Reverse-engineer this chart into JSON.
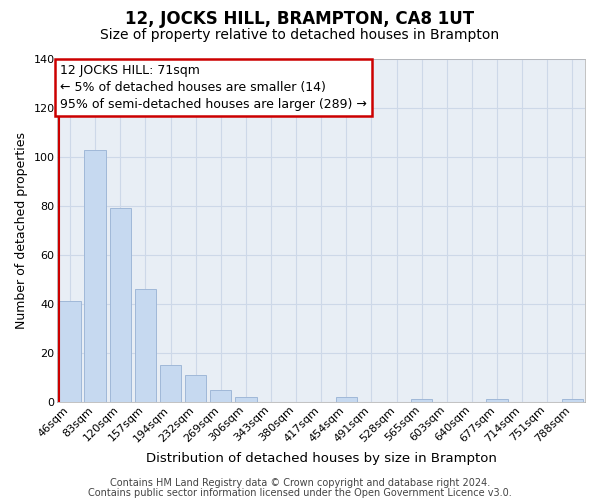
{
  "title": "12, JOCKS HILL, BRAMPTON, CA8 1UT",
  "subtitle": "Size of property relative to detached houses in Brampton",
  "xlabel": "Distribution of detached houses by size in Brampton",
  "ylabel": "Number of detached properties",
  "bar_labels": [
    "46sqm",
    "83sqm",
    "120sqm",
    "157sqm",
    "194sqm",
    "232sqm",
    "269sqm",
    "306sqm",
    "343sqm",
    "380sqm",
    "417sqm",
    "454sqm",
    "491sqm",
    "528sqm",
    "565sqm",
    "603sqm",
    "640sqm",
    "677sqm",
    "714sqm",
    "751sqm",
    "788sqm"
  ],
  "bar_values": [
    41,
    103,
    79,
    46,
    15,
    11,
    5,
    2,
    0,
    0,
    0,
    2,
    0,
    0,
    1,
    0,
    0,
    1,
    0,
    0,
    1
  ],
  "bar_color": "#c6d9f0",
  "bar_edgecolor": "#a0b8d8",
  "annotation_title": "12 JOCKS HILL: 71sqm",
  "annotation_line1": "← 5% of detached houses are smaller (14)",
  "annotation_line2": "95% of semi-detached houses are larger (289) →",
  "annotation_box_facecolor": "#ffffff",
  "annotation_box_edgecolor": "#cc0000",
  "ylim": [
    0,
    140
  ],
  "yticks": [
    0,
    20,
    40,
    60,
    80,
    100,
    120,
    140
  ],
  "footer1": "Contains HM Land Registry data © Crown copyright and database right 2024.",
  "footer2": "Contains public sector information licensed under the Open Government Licence v3.0.",
  "grid_color": "#cdd8e8",
  "red_line_color": "#cc0000",
  "bg_color": "#e8eef5",
  "title_fontsize": 12,
  "subtitle_fontsize": 10,
  "xlabel_fontsize": 9.5,
  "ylabel_fontsize": 9,
  "tick_fontsize": 8,
  "annotation_fontsize": 9,
  "footer_fontsize": 7
}
